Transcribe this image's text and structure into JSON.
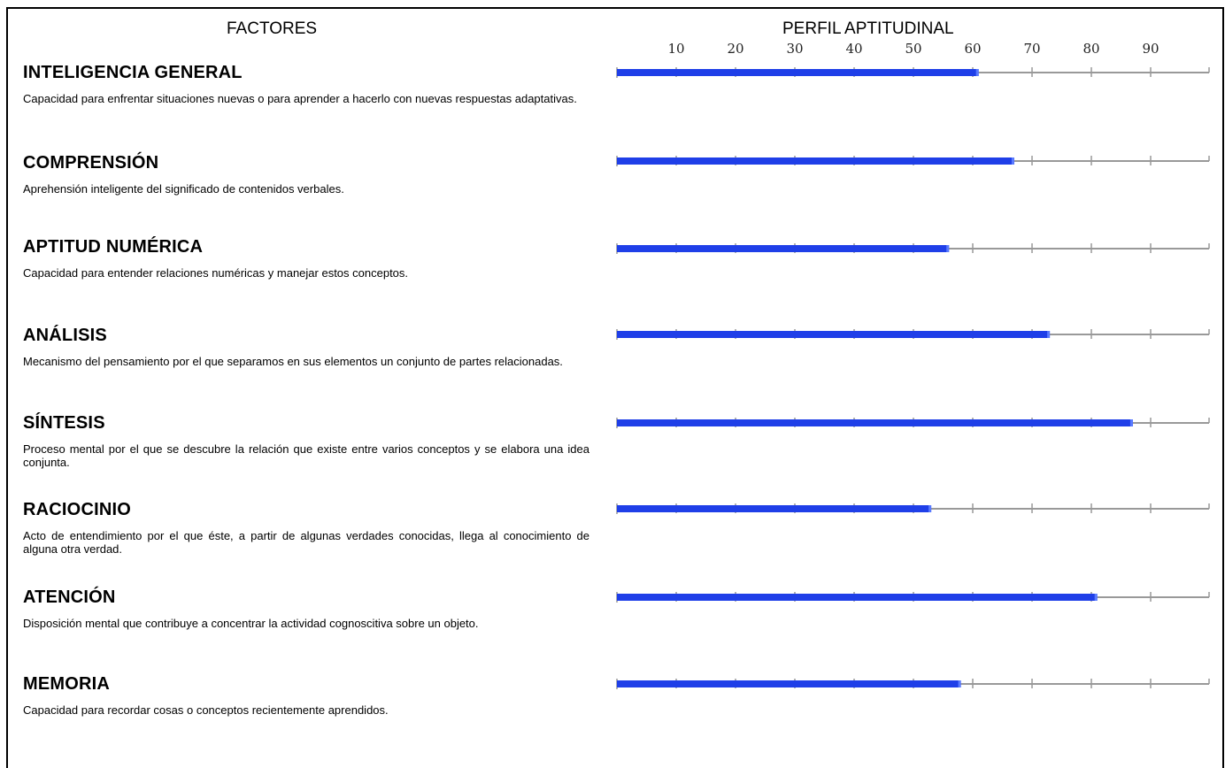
{
  "headers": {
    "factores": "FACTORES",
    "perfil": "PERFIL APTITUDINAL"
  },
  "colors": {
    "bar": "#1f3fe8",
    "bar_highlight": "#5a7bff",
    "axis": "#999999"
  },
  "chart_data": {
    "type": "bar",
    "orientation": "horizontal",
    "title": "PERFIL APTITUDINAL",
    "xlim": [
      0,
      100
    ],
    "ticks": [
      10,
      20,
      30,
      40,
      50,
      60,
      70,
      80,
      90
    ],
    "tick_labels": [
      "10",
      "20",
      "30",
      "40",
      "50",
      "60",
      "70",
      "80",
      "90"
    ],
    "categories": [
      "INTELIGENCIA GENERAL",
      "COMPRENSIÓN",
      "APTITUD NUMÉRICA",
      "ANÁLISIS",
      "SÍNTESIS",
      "RACIOCINIO",
      "ATENCIÓN",
      "MEMORIA"
    ],
    "values": [
      61,
      67,
      56,
      73,
      87,
      53,
      81,
      58
    ],
    "grid": false,
    "legend": "none"
  },
  "factors": [
    {
      "title": "INTELIGENCIA GENERAL",
      "description": "Capacidad para enfrentar situaciones nuevas o para aprender a hacerlo con nuevas respuestas adaptativas."
    },
    {
      "title": "COMPRENSIÓN",
      "description": "Aprehensión inteligente del significado de contenidos verbales."
    },
    {
      "title": "APTITUD NUMÉRICA",
      "description": "Capacidad para entender relaciones numéricas y manejar estos conceptos."
    },
    {
      "title": "ANÁLISIS",
      "description": "Mecanismo del pensamiento por el que separamos en sus elementos un conjunto de partes relacionadas."
    },
    {
      "title": "SÍNTESIS",
      "description": "Proceso mental por el que se descubre la relación que existe entre varios conceptos y se elabora una idea conjunta."
    },
    {
      "title": "RACIOCINIO",
      "description": "Acto de entendimiento por el que éste, a partir de algunas verdades conocidas, llega al conocimiento de alguna otra verdad."
    },
    {
      "title": "ATENCIÓN",
      "description": "Disposición mental que contribuye a concentrar la actividad cognoscitiva sobre un objeto."
    },
    {
      "title": "MEMORIA",
      "description": "Capacidad para recordar cosas o conceptos recientemente aprendidos."
    }
  ]
}
